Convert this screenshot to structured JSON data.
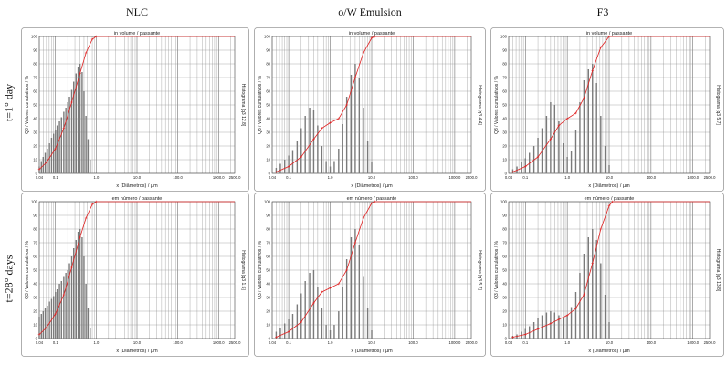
{
  "columns": [
    "NLC",
    "o/W Emulsion",
    "F3"
  ],
  "rows": [
    "t=1° day",
    "t=28° days"
  ],
  "chart_data": [
    {
      "id": "p11",
      "type": "bar",
      "title": "in volume / passante",
      "xlabel": "x (Diâmetros) / µm",
      "ylabel": "Q3 / Valores cumulativos / %",
      "right_label": "Histograma [q3 12.8]",
      "xscale": "log",
      "xlim": [
        0.04,
        2500
      ],
      "ylim": [
        0,
        100
      ],
      "x_ticks": [
        "0.04",
        "0.1",
        "1.0",
        "10.0",
        "100.0",
        "1000.0",
        "2500.0"
      ],
      "y_ticks": [
        "0",
        "10",
        "20",
        "30",
        "40",
        "50",
        "60",
        "70",
        "80",
        "90",
        "100"
      ],
      "bars": [
        [
          0.04,
          5
        ],
        [
          0.045,
          9
        ],
        [
          0.05,
          12
        ],
        [
          0.056,
          15
        ],
        [
          0.063,
          18
        ],
        [
          0.071,
          22
        ],
        [
          0.08,
          26
        ],
        [
          0.09,
          29
        ],
        [
          0.1,
          32
        ],
        [
          0.11,
          35
        ],
        [
          0.125,
          38
        ],
        [
          0.14,
          41
        ],
        [
          0.16,
          45
        ],
        [
          0.18,
          48
        ],
        [
          0.2,
          52
        ],
        [
          0.22,
          56
        ],
        [
          0.25,
          61
        ],
        [
          0.28,
          67
        ],
        [
          0.32,
          73
        ],
        [
          0.36,
          78
        ],
        [
          0.4,
          80
        ],
        [
          0.45,
          74
        ],
        [
          0.5,
          60
        ],
        [
          0.56,
          42
        ],
        [
          0.63,
          25
        ],
        [
          0.71,
          10
        ]
      ],
      "cumulative": [
        [
          0.04,
          3
        ],
        [
          0.06,
          8
        ],
        [
          0.1,
          18
        ],
        [
          0.16,
          33
        ],
        [
          0.25,
          52
        ],
        [
          0.4,
          73
        ],
        [
          0.56,
          88
        ],
        [
          0.8,
          98
        ],
        [
          1.0,
          100
        ],
        [
          2500,
          100
        ]
      ]
    },
    {
      "id": "p12",
      "type": "bar",
      "title": "in volume / passante",
      "xlabel": "x (Diâmetros) / µm",
      "ylabel": "Q3 / Valores cumulativos / %",
      "right_label": "Histograma [q3 4.4]",
      "xscale": "log",
      "xlim": [
        0.04,
        2500
      ],
      "ylim": [
        0,
        100
      ],
      "x_ticks": [
        "0.04",
        "0.1",
        "1.0",
        "10.0",
        "100.0",
        "1000.0",
        "2500.0"
      ],
      "y_ticks": [
        "0",
        "10",
        "20",
        "30",
        "40",
        "50",
        "60",
        "70",
        "80",
        "90",
        "100"
      ],
      "bars": [
        [
          0.05,
          4
        ],
        [
          0.063,
          7
        ],
        [
          0.08,
          10
        ],
        [
          0.1,
          13
        ],
        [
          0.125,
          17
        ],
        [
          0.16,
          24
        ],
        [
          0.2,
          33
        ],
        [
          0.25,
          42
        ],
        [
          0.32,
          48
        ],
        [
          0.4,
          46
        ],
        [
          0.5,
          35
        ],
        [
          0.63,
          20
        ],
        [
          0.8,
          9
        ],
        [
          1.0,
          5
        ],
        [
          1.25,
          9
        ],
        [
          1.6,
          18
        ],
        [
          2.0,
          36
        ],
        [
          2.5,
          56
        ],
        [
          3.2,
          72
        ],
        [
          4.0,
          80
        ],
        [
          5.0,
          70
        ],
        [
          6.3,
          48
        ],
        [
          8.0,
          24
        ],
        [
          10,
          8
        ]
      ],
      "cumulative": [
        [
          0.05,
          1
        ],
        [
          0.1,
          5
        ],
        [
          0.2,
          12
        ],
        [
          0.4,
          25
        ],
        [
          0.63,
          33
        ],
        [
          1.0,
          37
        ],
        [
          1.6,
          40
        ],
        [
          2.5,
          50
        ],
        [
          4.0,
          70
        ],
        [
          6.3,
          88
        ],
        [
          10,
          99
        ],
        [
          12,
          100
        ],
        [
          2500,
          100
        ]
      ]
    },
    {
      "id": "p13",
      "type": "bar",
      "title": "in volume / passante",
      "xlabel": "x (Diâmetros) / µm",
      "ylabel": "Q3 / Valores cumulativos / %",
      "right_label": "Histograma [q3 5.7]",
      "xscale": "log",
      "xlim": [
        0.04,
        2500
      ],
      "ylim": [
        0,
        100
      ],
      "x_ticks": [
        "0.04",
        "0.1",
        "1.0",
        "10.0",
        "100.0",
        "1000.0",
        "2500.0"
      ],
      "y_ticks": [
        "0",
        "10",
        "20",
        "30",
        "40",
        "50",
        "60",
        "70",
        "80",
        "90",
        "100"
      ],
      "bars": [
        [
          0.05,
          3
        ],
        [
          0.063,
          5
        ],
        [
          0.08,
          8
        ],
        [
          0.1,
          11
        ],
        [
          0.125,
          15
        ],
        [
          0.16,
          20
        ],
        [
          0.2,
          26
        ],
        [
          0.25,
          33
        ],
        [
          0.32,
          42
        ],
        [
          0.4,
          52
        ],
        [
          0.5,
          50
        ],
        [
          0.63,
          38
        ],
        [
          0.8,
          22
        ],
        [
          1.0,
          12
        ],
        [
          1.25,
          16
        ],
        [
          1.6,
          32
        ],
        [
          2.0,
          52
        ],
        [
          2.5,
          68
        ],
        [
          3.2,
          76
        ],
        [
          4.0,
          80
        ],
        [
          5.0,
          66
        ],
        [
          6.3,
          42
        ],
        [
          8.0,
          20
        ],
        [
          10,
          6
        ]
      ],
      "cumulative": [
        [
          0.05,
          1
        ],
        [
          0.1,
          5
        ],
        [
          0.2,
          12
        ],
        [
          0.4,
          25
        ],
        [
          0.63,
          35
        ],
        [
          1.0,
          40
        ],
        [
          1.6,
          44
        ],
        [
          2.5,
          55
        ],
        [
          4.0,
          75
        ],
        [
          6.3,
          92
        ],
        [
          10,
          100
        ],
        [
          2500,
          100
        ]
      ]
    },
    {
      "id": "p21",
      "type": "bar",
      "title": "em número / passante",
      "xlabel": "x (Diâmetros) / µm",
      "ylabel": "Q3 / Valores cumulativos / %",
      "right_label": "Histograma [q3 1.5]",
      "xscale": "log",
      "xlim": [
        0.04,
        2500
      ],
      "ylim": [
        0,
        100
      ],
      "x_ticks": [
        "0.04",
        "0.1",
        "1.0",
        "10.0",
        "100.0",
        "1000.0",
        "2500.0"
      ],
      "y_ticks": [
        "0",
        "10",
        "20",
        "30",
        "40",
        "50",
        "60",
        "70",
        "80",
        "90",
        "100"
      ],
      "bars": [
        [
          0.04,
          16
        ],
        [
          0.045,
          18
        ],
        [
          0.05,
          20
        ],
        [
          0.056,
          22
        ],
        [
          0.063,
          24
        ],
        [
          0.071,
          27
        ],
        [
          0.08,
          29
        ],
        [
          0.09,
          31
        ],
        [
          0.1,
          34
        ],
        [
          0.11,
          36
        ],
        [
          0.125,
          40
        ],
        [
          0.14,
          42
        ],
        [
          0.16,
          45
        ],
        [
          0.18,
          48
        ],
        [
          0.2,
          50
        ],
        [
          0.22,
          55
        ],
        [
          0.25,
          60
        ],
        [
          0.28,
          66
        ],
        [
          0.32,
          72
        ],
        [
          0.36,
          78
        ],
        [
          0.4,
          80
        ],
        [
          0.45,
          74
        ],
        [
          0.5,
          60
        ],
        [
          0.56,
          40
        ],
        [
          0.63,
          22
        ],
        [
          0.71,
          8
        ]
      ],
      "cumulative": [
        [
          0.04,
          3
        ],
        [
          0.06,
          8
        ],
        [
          0.1,
          18
        ],
        [
          0.16,
          32
        ],
        [
          0.25,
          52
        ],
        [
          0.4,
          74
        ],
        [
          0.56,
          88
        ],
        [
          0.8,
          98
        ],
        [
          1.0,
          100
        ],
        [
          2500,
          100
        ]
      ]
    },
    {
      "id": "p22",
      "type": "bar",
      "title": "em número / passante",
      "xlabel": "x (Diâmetros) / µm",
      "ylabel": "Q3 / Valores cumulativos / %",
      "right_label": "Histograma [q3 5.7]",
      "xscale": "log",
      "xlim": [
        0.04,
        2500
      ],
      "ylim": [
        0,
        100
      ],
      "x_ticks": [
        "0.04",
        "0.1",
        "1.0",
        "10.0",
        "100.0",
        "1000.0",
        "2500.0"
      ],
      "y_ticks": [
        "0",
        "10",
        "20",
        "30",
        "40",
        "50",
        "60",
        "70",
        "80",
        "90",
        "100"
      ],
      "bars": [
        [
          0.05,
          5
        ],
        [
          0.063,
          8
        ],
        [
          0.08,
          11
        ],
        [
          0.1,
          14
        ],
        [
          0.125,
          18
        ],
        [
          0.16,
          25
        ],
        [
          0.2,
          33
        ],
        [
          0.25,
          42
        ],
        [
          0.32,
          48
        ],
        [
          0.4,
          50
        ],
        [
          0.5,
          38
        ],
        [
          0.63,
          22
        ],
        [
          0.8,
          10
        ],
        [
          1.0,
          6
        ],
        [
          1.25,
          10
        ],
        [
          1.6,
          20
        ],
        [
          2.0,
          38
        ],
        [
          2.5,
          58
        ],
        [
          3.2,
          74
        ],
        [
          4.0,
          80
        ],
        [
          5.0,
          68
        ],
        [
          6.3,
          45
        ],
        [
          8.0,
          22
        ],
        [
          10,
          6
        ]
      ],
      "cumulative": [
        [
          0.05,
          1
        ],
        [
          0.1,
          5
        ],
        [
          0.2,
          12
        ],
        [
          0.4,
          26
        ],
        [
          0.63,
          34
        ],
        [
          1.0,
          37
        ],
        [
          1.6,
          40
        ],
        [
          2.5,
          50
        ],
        [
          4.0,
          70
        ],
        [
          6.3,
          88
        ],
        [
          10,
          99
        ],
        [
          12,
          100
        ],
        [
          2500,
          100
        ]
      ]
    },
    {
      "id": "p23",
      "type": "bar",
      "title": "em número / passante",
      "xlabel": "x (Diâmetros) / µm",
      "ylabel": "Q3 / Valores cumulativos / %",
      "right_label": "Histograma [q3 13.8]",
      "xscale": "log",
      "xlim": [
        0.04,
        2500
      ],
      "ylim": [
        0,
        100
      ],
      "x_ticks": [
        "0.04",
        "0.1",
        "1.0",
        "10.0",
        "100.0",
        "1000.0",
        "2500.0"
      ],
      "y_ticks": [
        "0",
        "10",
        "20",
        "30",
        "40",
        "50",
        "60",
        "70",
        "80",
        "90",
        "100"
      ],
      "bars": [
        [
          0.05,
          2
        ],
        [
          0.063,
          3
        ],
        [
          0.08,
          5
        ],
        [
          0.1,
          7
        ],
        [
          0.125,
          9
        ],
        [
          0.16,
          12
        ],
        [
          0.2,
          15
        ],
        [
          0.25,
          17
        ],
        [
          0.32,
          19
        ],
        [
          0.4,
          20
        ],
        [
          0.5,
          19
        ],
        [
          0.63,
          17
        ],
        [
          0.8,
          15
        ],
        [
          1.0,
          17
        ],
        [
          1.25,
          23
        ],
        [
          1.6,
          34
        ],
        [
          2.0,
          48
        ],
        [
          2.5,
          62
        ],
        [
          3.2,
          74
        ],
        [
          4.0,
          80
        ],
        [
          5.0,
          72
        ],
        [
          6.3,
          55
        ],
        [
          8.0,
          32
        ],
        [
          10,
          12
        ]
      ],
      "cumulative": [
        [
          0.05,
          1
        ],
        [
          0.1,
          3
        ],
        [
          0.2,
          7
        ],
        [
          0.4,
          11
        ],
        [
          0.63,
          14
        ],
        [
          1.0,
          17
        ],
        [
          1.6,
          22
        ],
        [
          2.5,
          32
        ],
        [
          4.0,
          55
        ],
        [
          6.3,
          80
        ],
        [
          10,
          97
        ],
        [
          12,
          100
        ],
        [
          2500,
          100
        ]
      ]
    }
  ]
}
